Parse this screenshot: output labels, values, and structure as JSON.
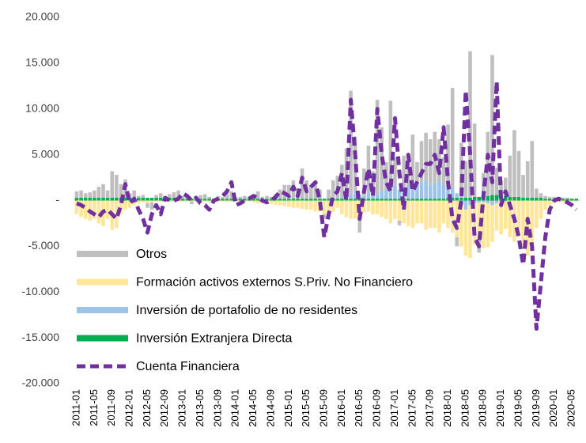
{
  "chart_data": {
    "type": "bar-line",
    "categories": [
      "2011-01",
      null,
      null,
      null,
      "2011-05",
      null,
      null,
      null,
      "2011-09",
      null,
      null,
      null,
      "2012-01",
      null,
      null,
      null,
      "2012-05",
      null,
      null,
      null,
      "2012-09",
      null,
      null,
      null,
      "2013-01",
      null,
      null,
      null,
      "2013-05",
      null,
      null,
      null,
      "2013-09",
      null,
      null,
      null,
      "2014-01",
      null,
      null,
      null,
      "2014-05",
      null,
      null,
      null,
      "2014-09",
      null,
      null,
      null,
      "2015-01",
      null,
      null,
      null,
      "2015-05",
      null,
      null,
      null,
      "2015-09",
      null,
      null,
      null,
      "2016-01",
      null,
      null,
      null,
      "2016-05",
      null,
      null,
      null,
      "2016-09",
      null,
      null,
      null,
      "2017-01",
      null,
      null,
      null,
      "2017-05",
      null,
      null,
      null,
      "2017-09",
      null,
      null,
      null,
      "2018-01",
      null,
      null,
      null,
      "2018-05",
      null,
      null,
      null,
      "2018-09",
      null,
      null,
      null,
      "2019-01",
      null,
      null,
      null,
      "2019-05",
      null,
      null,
      null,
      "2019-09",
      null,
      null,
      null,
      "2020-01",
      null,
      null,
      null,
      "2020-05",
      null
    ],
    "series": [
      {
        "name": "Otros",
        "color": "#bfbfbf",
        "kind": "bar",
        "values": [
          700,
          800,
          500,
          600,
          800,
          1200,
          1500,
          800,
          2900,
          2500,
          1500,
          2000,
          500,
          800,
          200,
          300,
          -500,
          -800,
          300,
          500,
          200,
          400,
          600,
          800,
          300,
          200,
          -300,
          200,
          400,
          500,
          200,
          0,
          300,
          200,
          600,
          800,
          100,
          200,
          300,
          200,
          500,
          800,
          200,
          300,
          200,
          500,
          1000,
          1500,
          1500,
          2000,
          1000,
          3300,
          2000,
          1500,
          1800,
          1000,
          -500,
          1000,
          2000,
          2500,
          3500,
          5000,
          11300,
          6000,
          -2000,
          3000,
          5000,
          2000,
          10300,
          7000,
          3000,
          9500,
          3000,
          -500,
          3500,
          2000,
          5000,
          2500,
          4500,
          5200,
          5000,
          5500,
          4500,
          3000,
          6500,
          11000,
          -1000,
          6000,
          4000,
          16000,
          8000,
          -1500,
          2500,
          7000,
          15300,
          3000,
          1500,
          2000,
          4500,
          7300,
          5000,
          2500,
          4000,
          6200,
          1000,
          500,
          300,
          200,
          200,
          100,
          100,
          100,
          0,
          0
        ]
      },
      {
        "name": "Formación activos externos S.Priv. No Financiero",
        "color": "#ffe699",
        "kind": "bar",
        "values": [
          -1500,
          -1800,
          -2000,
          -2200,
          -2000,
          -2500,
          -2800,
          -2000,
          -3200,
          -3000,
          -1500,
          -1000,
          -800,
          -500,
          -300,
          -200,
          -300,
          -200,
          -100,
          -100,
          -100,
          -100,
          -100,
          -100,
          -100,
          -100,
          -100,
          -100,
          -100,
          -100,
          -100,
          -100,
          -100,
          -100,
          -100,
          -100,
          -100,
          -100,
          -100,
          -100,
          -200,
          -300,
          -300,
          -300,
          -400,
          -500,
          -500,
          -600,
          -700,
          -800,
          -800,
          -900,
          -1000,
          -1000,
          -1200,
          -1200,
          -1500,
          -1500,
          -1200,
          -800,
          -1500,
          -1800,
          -2000,
          -2000,
          -1500,
          -1300,
          -1200,
          -1500,
          -1500,
          -1800,
          -2000,
          -2500,
          -2000,
          -2200,
          -2500,
          -2800,
          -3000,
          -2500,
          -2500,
          -3200,
          -3000,
          -3000,
          -3500,
          -2500,
          -3000,
          -3500,
          -4000,
          -4500,
          -5000,
          -5800,
          -4500,
          -4000,
          -5000,
          -4800,
          -4000,
          -3000,
          -3500,
          -3000,
          -4000,
          -4500,
          -4000,
          -5000,
          -6000,
          -5000,
          -3000,
          -2000,
          -1000,
          -500,
          -300,
          -200,
          -200,
          -100,
          -100,
          -100
        ]
      },
      {
        "name": "Inversión de portafolio de no residentes",
        "color": "#9dc3e6",
        "kind": "bar",
        "values": [
          0,
          0,
          0,
          0,
          0,
          0,
          0,
          0,
          0,
          0,
          0,
          0,
          0,
          0,
          0,
          0,
          0,
          0,
          0,
          0,
          0,
          0,
          0,
          0,
          0,
          0,
          0,
          0,
          0,
          0,
          0,
          0,
          0,
          0,
          0,
          0,
          0,
          0,
          0,
          0,
          0,
          0,
          0,
          0,
          0,
          0,
          0,
          0,
          0,
          0,
          0,
          0,
          0,
          0,
          0,
          0,
          0,
          0,
          0,
          0,
          200,
          500,
          500,
          800,
          500,
          300,
          800,
          1000,
          500,
          800,
          1000,
          1200,
          1500,
          1000,
          1200,
          1500,
          2000,
          1500,
          1800,
          2000,
          1500,
          1800,
          2000,
          1500,
          1500,
          1000,
          500,
          -500,
          -1000,
          -500,
          -300,
          -200,
          -200,
          -300,
          -500,
          -300,
          -200,
          -100,
          0,
          0,
          0,
          0,
          0,
          0,
          0,
          0,
          0,
          0,
          0,
          0,
          0,
          0,
          0,
          0
        ]
      },
      {
        "name": "Inversión Extranjera Directa",
        "color": "#00b050",
        "kind": "bar",
        "values": [
          300,
          300,
          300,
          300,
          300,
          300,
          300,
          300,
          300,
          300,
          300,
          300,
          300,
          300,
          300,
          300,
          300,
          300,
          300,
          300,
          300,
          300,
          300,
          300,
          200,
          200,
          200,
          200,
          200,
          200,
          200,
          200,
          200,
          200,
          200,
          200,
          200,
          200,
          200,
          200,
          200,
          200,
          200,
          200,
          200,
          200,
          200,
          200,
          200,
          200,
          200,
          200,
          200,
          200,
          200,
          200,
          200,
          200,
          200,
          200,
          200,
          200,
          200,
          200,
          200,
          200,
          200,
          200,
          200,
          200,
          200,
          200,
          200,
          200,
          200,
          200,
          200,
          200,
          200,
          200,
          200,
          200,
          200,
          200,
          300,
          300,
          300,
          300,
          300,
          300,
          400,
          400,
          500,
          500,
          600,
          600,
          700,
          500,
          400,
          400,
          400,
          300,
          300,
          300,
          300,
          300,
          200,
          200,
          200,
          200,
          200,
          200,
          200,
          200
        ]
      },
      {
        "name": "Cuenta Financiera",
        "color": "#7030a0",
        "kind": "line",
        "values": [
          -300,
          -500,
          -800,
          -1200,
          -1500,
          -1800,
          -1200,
          -1000,
          -1500,
          -2000,
          -500,
          1800,
          -300,
          200,
          -1000,
          -2000,
          -3500,
          -1500,
          -500,
          -1500,
          300,
          0,
          0,
          200,
          800,
          500,
          0,
          300,
          -300,
          -500,
          -1000,
          0,
          200,
          500,
          1000,
          2000,
          -500,
          -300,
          0,
          200,
          500,
          300,
          0,
          -200,
          0,
          400,
          1000,
          800,
          500,
          1500,
          500,
          2500,
          1000,
          1500,
          2000,
          0,
          -4000,
          -1500,
          500,
          1000,
          3000,
          0,
          11000,
          5000,
          -2000,
          1000,
          3500,
          500,
          10000,
          5000,
          2000,
          1000,
          9000,
          3000,
          -1000,
          5000,
          1000,
          2000,
          3000,
          4000,
          4000,
          5000,
          3000,
          8000,
          2000,
          -2000,
          -3000,
          0,
          12000,
          5000,
          -4000,
          -5000,
          500,
          5000,
          2000,
          13000,
          -500,
          1000,
          -500,
          -2000,
          -4000,
          -7000,
          -2000,
          -5000,
          -14000,
          -9000,
          -4000,
          -1000,
          0,
          200,
          0,
          -200,
          -500,
          -1000
        ]
      }
    ],
    "ylim": [
      -20000,
      20000
    ],
    "yticks": [
      {
        "value": -20000,
        "label": "-20.000"
      },
      {
        "value": -15000,
        "label": "-15.000"
      },
      {
        "value": -10000,
        "label": "-10.000"
      },
      {
        "value": -5000,
        "label": "-5.000"
      },
      {
        "value": 0,
        "label": "-"
      },
      {
        "value": 5000,
        "label": "5.000"
      },
      {
        "value": 10000,
        "label": "10.000"
      },
      {
        "value": 15000,
        "label": "15.000"
      },
      {
        "value": 20000,
        "label": "20.000"
      }
    ],
    "legend": "lower left"
  }
}
